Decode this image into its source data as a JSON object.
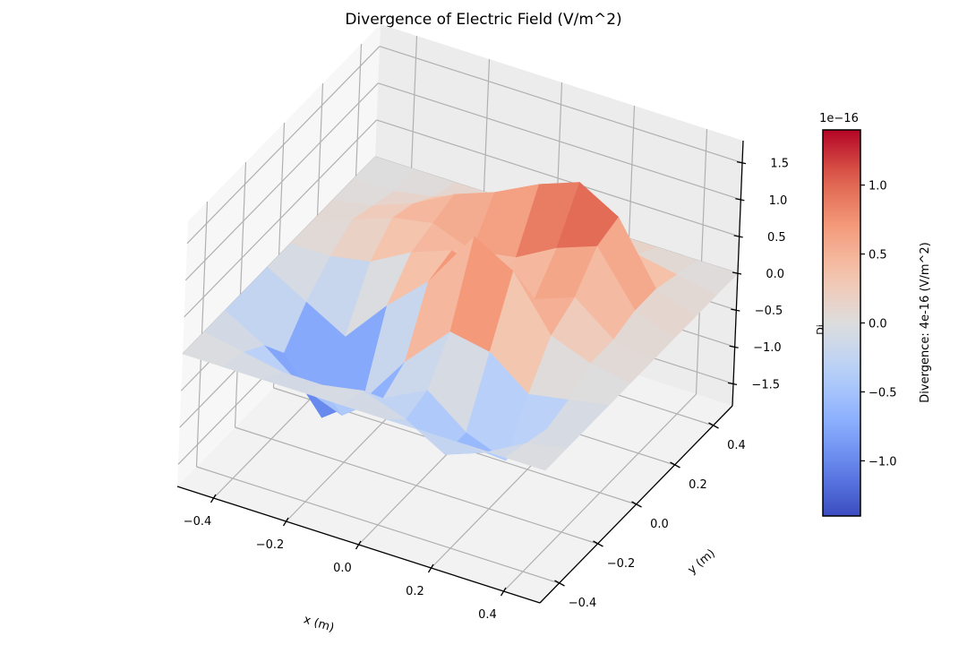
{
  "chart_data": {
    "type": "surface3d",
    "title": "Divergence of Electric Field (V/m^2)",
    "xlabel": "x (m)",
    "ylabel": "y (m)",
    "zlabel": "Di",
    "x_ticks": [
      "−0.4",
      "−0.2",
      "0.0",
      "0.2",
      "0.4"
    ],
    "y_ticks": [
      "−0.4",
      "−0.2",
      "0.0",
      "0.2",
      "0.4"
    ],
    "z_ticks": [
      "−1.5",
      "−1.0",
      "−0.5",
      "0.0",
      "0.5",
      "1.0",
      "1.5"
    ],
    "x_range": [
      -0.5,
      0.5
    ],
    "y_range": [
      -0.5,
      0.5
    ],
    "z_range": [
      -1.8,
      1.8
    ],
    "z_scale_label": "1e−16",
    "x": [
      -0.5,
      -0.39,
      -0.28,
      -0.17,
      -0.06,
      0.06,
      0.17,
      0.28,
      0.39,
      0.5
    ],
    "y": [
      -0.5,
      -0.39,
      -0.28,
      -0.17,
      -0.06,
      0.06,
      0.17,
      0.28,
      0.39,
      0.5
    ],
    "z": [
      [
        0.0,
        0.0,
        0.0,
        0.0,
        0.0,
        0.0,
        0.0,
        0.0,
        0.0,
        0.0
      ],
      [
        0.0,
        -0.1,
        -0.2,
        -0.2,
        -0.1,
        -0.3,
        -0.6,
        -0.4,
        -0.1,
        0.0
      ],
      [
        0.0,
        -0.3,
        -0.7,
        -0.9,
        -0.5,
        -0.2,
        -0.6,
        -0.8,
        -0.2,
        0.0
      ],
      [
        0.0,
        -0.7,
        -1.4,
        -1.0,
        -0.3,
        0.3,
        0.2,
        -0.2,
        -0.1,
        0.0
      ],
      [
        0.0,
        -0.3,
        -0.6,
        0.0,
        0.5,
        1.3,
        1.0,
        0.3,
        0.1,
        0.0
      ],
      [
        0.0,
        0.0,
        0.1,
        0.4,
        0.6,
        0.4,
        0.3,
        0.5,
        0.1,
        0.0
      ],
      [
        0.0,
        0.2,
        0.4,
        0.5,
        0.3,
        0.4,
        0.7,
        0.9,
        0.2,
        0.0
      ],
      [
        0.0,
        0.1,
        0.3,
        0.6,
        0.8,
        1.1,
        1.3,
        1.0,
        0.2,
        0.0
      ],
      [
        0.0,
        0.0,
        0.1,
        0.3,
        0.5,
        0.7,
        0.4,
        0.2,
        0.1,
        0.0
      ],
      [
        0.0,
        0.0,
        0.0,
        0.0,
        0.0,
        0.0,
        0.0,
        0.0,
        0.0,
        0.0
      ]
    ],
    "colormap": "coolwarm",
    "colorbar": {
      "label": "Divergence: 4e-16 (V/m^2)",
      "ticks": [
        "−1.0",
        "−0.5",
        "0.0",
        "0.5",
        "1.0"
      ],
      "range": [
        -1.4,
        1.4
      ],
      "scale_label": "1e−16"
    },
    "grid": true
  }
}
